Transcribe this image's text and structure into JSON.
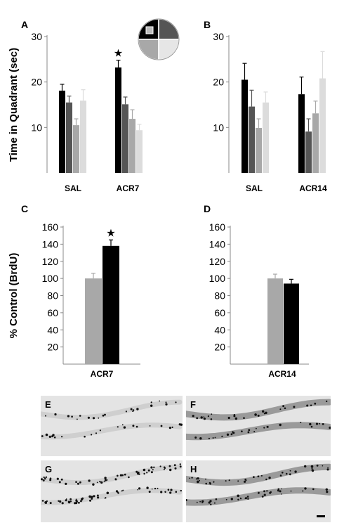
{
  "chart_data": [
    {
      "panel": "A",
      "type": "bar",
      "ylabel": "Time in Quadrant (sec)",
      "ylim": [
        0,
        30
      ],
      "yticks": [
        10,
        20,
        30
      ],
      "categories": [
        "SAL",
        "ACR7"
      ],
      "series": [
        {
          "values": [
            18.1,
            23.2
          ],
          "errors": [
            1.4,
            1.6
          ],
          "color": "#000000"
        },
        {
          "values": [
            15.5,
            15.1
          ],
          "errors": [
            1.4,
            1.6
          ],
          "color": "#555555"
        },
        {
          "values": [
            10.5,
            11.9
          ],
          "errors": [
            1.4,
            2.0
          ],
          "color": "#a8a8a8"
        },
        {
          "values": [
            15.9,
            9.4
          ],
          "errors": [
            2.4,
            1.3
          ],
          "color": "#dcdcdc"
        }
      ],
      "annotations": [
        {
          "text": "★",
          "category": 1,
          "series": 0
        }
      ]
    },
    {
      "panel": "B",
      "type": "bar",
      "ylim": [
        0,
        30
      ],
      "yticks": [
        10,
        20,
        30
      ],
      "categories": [
        "SAL",
        "ACR14"
      ],
      "series": [
        {
          "values": [
            20.5,
            17.3
          ],
          "errors": [
            3.6,
            3.8
          ],
          "color": "#000000"
        },
        {
          "values": [
            14.6,
            9.1
          ],
          "errors": [
            3.6,
            2.8
          ],
          "color": "#555555"
        },
        {
          "values": [
            9.9,
            13.1
          ],
          "errors": [
            2.0,
            2.7
          ],
          "color": "#a8a8a8"
        },
        {
          "values": [
            15.5,
            20.8
          ],
          "errors": [
            2.3,
            5.9
          ],
          "color": "#dcdcdc"
        }
      ]
    },
    {
      "panel": "C",
      "type": "bar",
      "ylabel": "% Control (BrdU)",
      "ylim": [
        0,
        160
      ],
      "yticks": [
        20,
        40,
        60,
        80,
        100,
        120,
        140,
        160
      ],
      "categories": [
        "ACR7"
      ],
      "series": [
        {
          "values": [
            100
          ],
          "errors": [
            6
          ],
          "color": "#a8a8a8"
        },
        {
          "values": [
            138
          ],
          "errors": [
            7
          ],
          "color": "#000000"
        }
      ],
      "annotations": [
        {
          "text": "★",
          "category": 0,
          "series": 1
        }
      ]
    },
    {
      "panel": "D",
      "type": "bar",
      "ylim": [
        0,
        160
      ],
      "yticks": [
        20,
        40,
        60,
        80,
        100,
        120,
        140,
        160
      ],
      "categories": [
        "ACR14"
      ],
      "series": [
        {
          "values": [
            100
          ],
          "errors": [
            5
          ],
          "color": "#a8a8a8"
        },
        {
          "values": [
            94
          ],
          "errors": [
            5
          ],
          "color": "#000000"
        }
      ]
    }
  ],
  "micrographs": [
    {
      "label": "E"
    },
    {
      "label": "F"
    },
    {
      "label": "G"
    },
    {
      "label": "H"
    }
  ],
  "quadrant_icon": {
    "colors": [
      "#000000",
      "#555555",
      "#a8a8a8",
      "#e6e6e6"
    ]
  }
}
